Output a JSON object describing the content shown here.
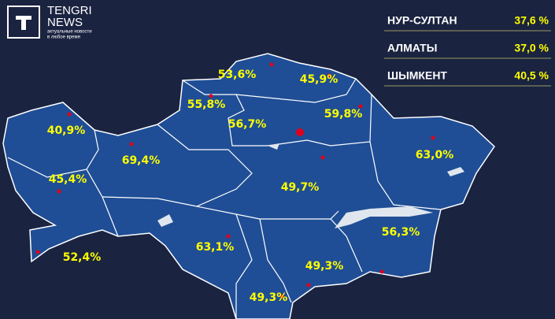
{
  "logo": {
    "name": "TENGRI",
    "name2": "NEWS",
    "tagline": [
      "актуальные новости",
      "в любое время"
    ]
  },
  "cities": [
    {
      "name": "НУР-СУЛТАН",
      "value": "37,6 %"
    },
    {
      "name": "АЛМАТЫ",
      "value": "37,0 %"
    },
    {
      "name": "ШЫМКЕНТ",
      "value": "40,5 %"
    }
  ],
  "regions": [
    {
      "label": "53,6%"
    },
    {
      "label": "45,9%"
    },
    {
      "label": "55,8%"
    },
    {
      "label": "56,7%"
    },
    {
      "label": "59,8%"
    },
    {
      "label": "40,9%"
    },
    {
      "label": "69,4%"
    },
    {
      "label": "63,0%"
    },
    {
      "label": "45,4%"
    },
    {
      "label": "49,7%"
    },
    {
      "label": "52,4%"
    },
    {
      "label": "63,1%"
    },
    {
      "label": "56,3%"
    },
    {
      "label": "49,3%"
    },
    {
      "label": "49,3%"
    }
  ]
}
